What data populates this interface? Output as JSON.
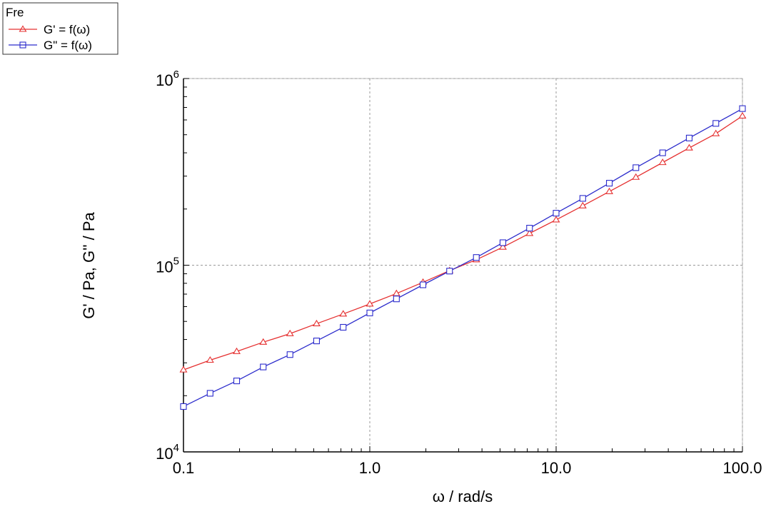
{
  "chart_data": {
    "type": "line",
    "xscale": "log",
    "yscale": "log",
    "xlim": [
      0.1,
      100.0
    ],
    "ylim": [
      10000,
      1000000
    ],
    "xlabel": "ω / rad/s",
    "ylabel": "G' / Pa, G'' / Pa",
    "x_ticks": [
      {
        "value": 0.1,
        "label": "0.1"
      },
      {
        "value": 1.0,
        "label": "1.0"
      },
      {
        "value": 10.0,
        "label": "10.0"
      },
      {
        "value": 100.0,
        "label": "100.0"
      }
    ],
    "y_ticks": [
      {
        "value": 10000,
        "base": "10",
        "exp": "4"
      },
      {
        "value": 100000,
        "base": "10",
        "exp": "5"
      },
      {
        "value": 1000000,
        "base": "10",
        "exp": "6"
      }
    ],
    "grid": true,
    "legend": {
      "title": "Fre",
      "position": "top-left",
      "entries": [
        {
          "label": "G' = f(ω)",
          "color": "#e53030",
          "marker": "triangle"
        },
        {
          "label": "G\" = f(ω)",
          "color": "#2c2ccc",
          "marker": "square"
        }
      ]
    },
    "series": [
      {
        "name": "G' = f(ω)",
        "color": "#e53030",
        "marker": "triangle",
        "x": [
          0.1,
          0.139,
          0.193,
          0.268,
          0.373,
          0.518,
          0.72,
          1.0,
          1.39,
          1.93,
          2.68,
          3.73,
          5.18,
          7.2,
          10.0,
          13.9,
          19.3,
          26.8,
          37.3,
          51.8,
          72.0,
          100.0
        ],
        "y": [
          27500,
          31000,
          34500,
          38700,
          43000,
          48600,
          54800,
          62000,
          70500,
          81000,
          93500,
          107000,
          125000,
          148000,
          175000,
          208000,
          248000,
          296000,
          355000,
          425000,
          507000,
          630000
        ]
      },
      {
        "name": "G\" = f(ω)",
        "color": "#2c2ccc",
        "marker": "square",
        "x": [
          0.1,
          0.139,
          0.193,
          0.268,
          0.373,
          0.518,
          0.72,
          1.0,
          1.39,
          1.93,
          2.68,
          3.73,
          5.18,
          7.2,
          10.0,
          13.9,
          19.3,
          26.8,
          37.3,
          51.8,
          72.0,
          100.0
        ],
        "y": [
          17500,
          20600,
          24000,
          28500,
          33200,
          39300,
          46500,
          55500,
          66000,
          78500,
          93000,
          110000,
          132000,
          158000,
          190000,
          228000,
          275000,
          333000,
          400000,
          480000,
          575000,
          690000
        ]
      }
    ]
  }
}
